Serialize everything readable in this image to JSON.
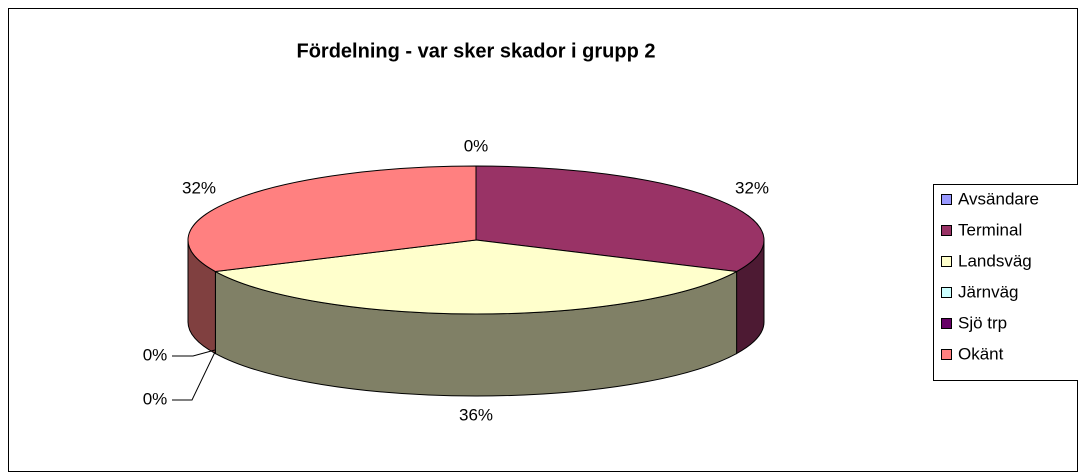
{
  "chart_data": {
    "type": "pie",
    "title": "Fördelning - var sker skador i grupp 2",
    "categories": [
      "Avsändare",
      "Terminal",
      "Landsväg",
      "Järnväg",
      "Sjö trp",
      "Okänt"
    ],
    "values": [
      0,
      32,
      36,
      0,
      0,
      32
    ],
    "value_labels": [
      "0%",
      "32%",
      "36%",
      "0%",
      "0%",
      "32%"
    ],
    "colors": [
      "#9999ff",
      "#993366",
      "#ffffcc",
      "#ccffff",
      "#660066",
      "#ff8080"
    ],
    "legend": "right"
  }
}
